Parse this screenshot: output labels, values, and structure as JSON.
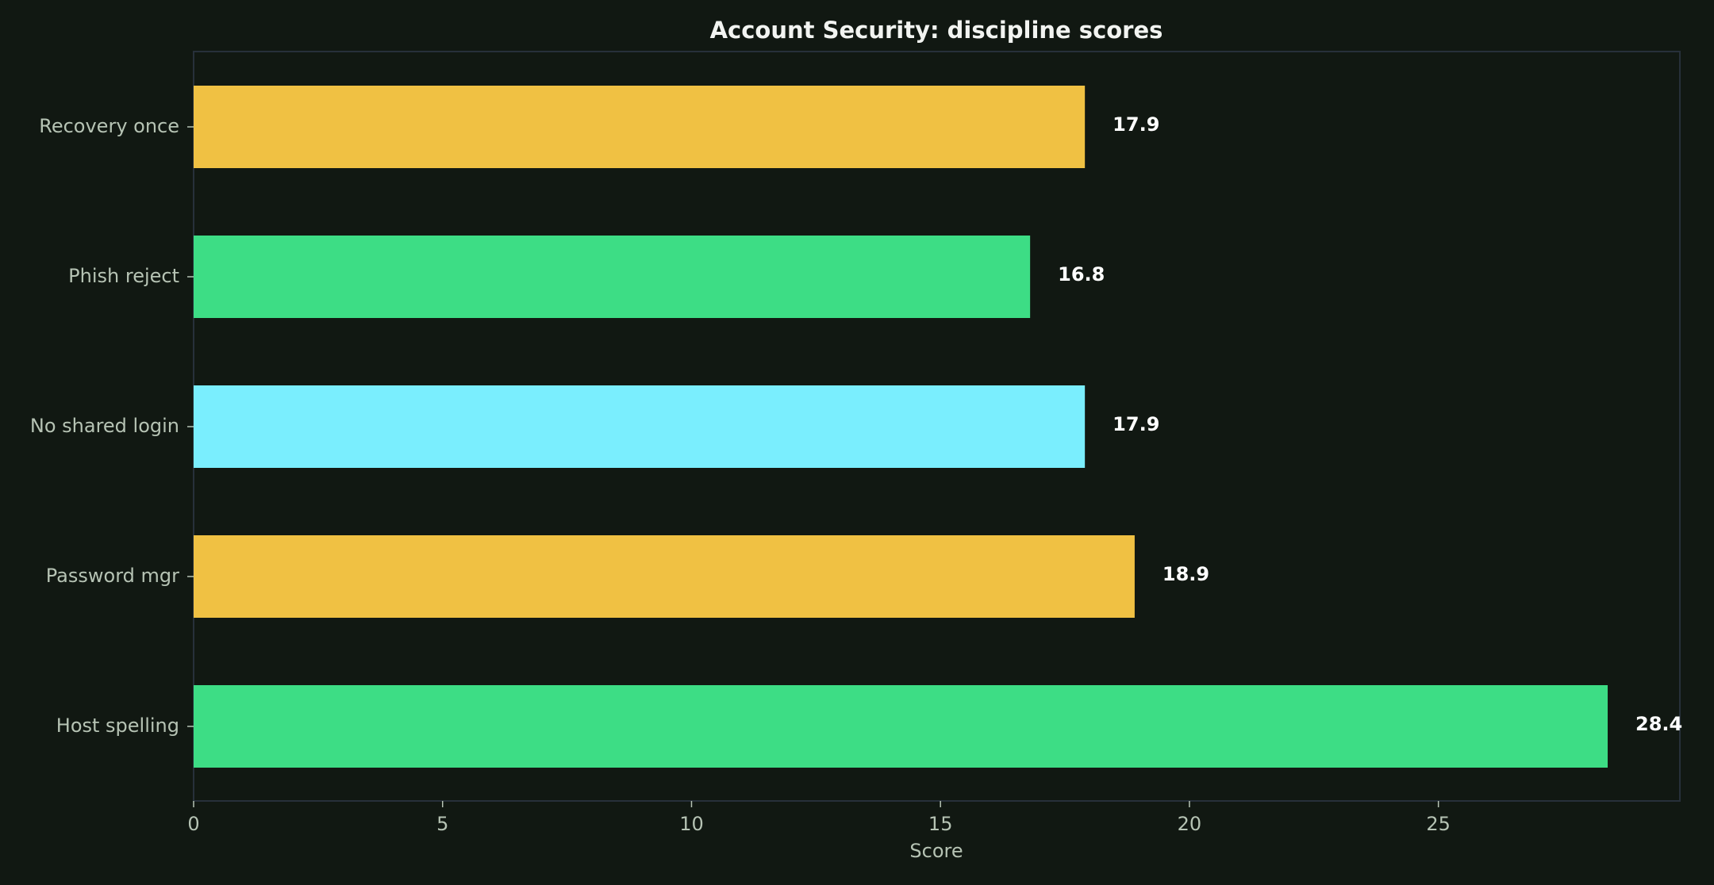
{
  "chart_data": {
    "type": "bar",
    "orientation": "horizontal",
    "title": "Account Security: discipline scores",
    "xlabel": "Score",
    "ylabel": "",
    "categories": [
      "Recovery once",
      "Phish reject",
      "No shared login",
      "Password mgr",
      "Host spelling"
    ],
    "values": [
      17.9,
      16.8,
      17.9,
      18.9,
      28.4
    ],
    "value_labels": [
      "17.9",
      "16.8",
      "17.9",
      "18.9",
      "28.4"
    ],
    "colors": [
      "#f0c143",
      "#3ddd85",
      "#7aeefe",
      "#f0c143",
      "#3ddd85"
    ],
    "xlim": [
      0,
      29.85
    ],
    "xticks": [
      0,
      5,
      10,
      15,
      20,
      25
    ],
    "xtick_labels": [
      "0",
      "5",
      "10",
      "15",
      "20",
      "25"
    ],
    "grid": false,
    "legend": "none"
  }
}
